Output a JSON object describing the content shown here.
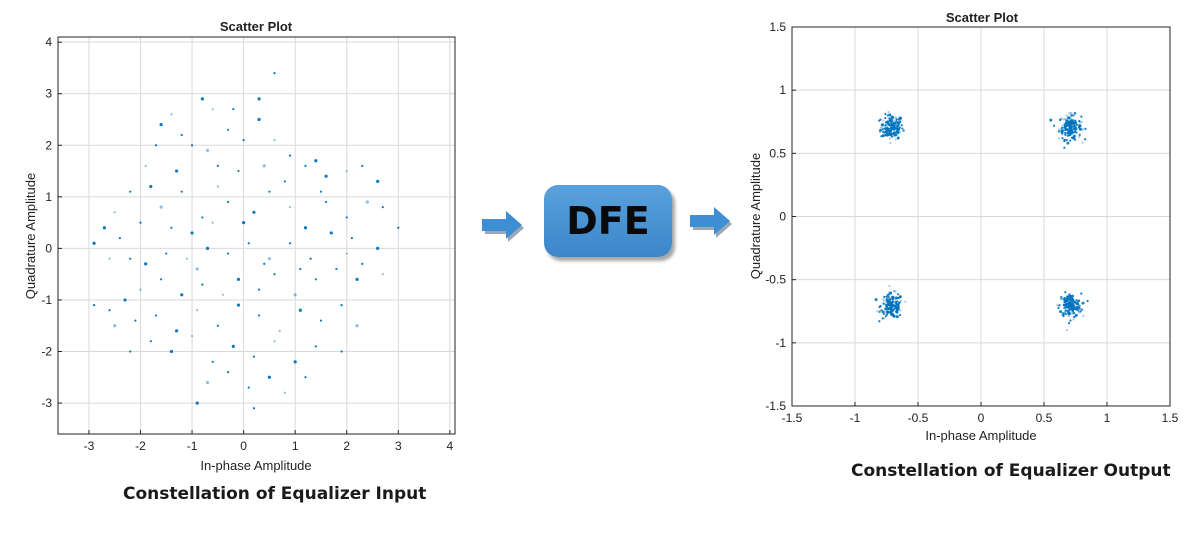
{
  "dfe_label": "DFE",
  "colors": {
    "point": "#0072bd",
    "arrow": "#3e8ed6",
    "box": "#4a95d5",
    "grid": "#d9d9d9"
  },
  "chart_data": [
    {
      "type": "scatter",
      "title": "Scatter Plot",
      "xlabel": "In-phase Amplitude",
      "ylabel": "Quadrature Amplitude",
      "caption": "Constellation of Equalizer Input",
      "xlim": [
        -3.6,
        4.1
      ],
      "ylim": [
        -3.6,
        4.1
      ],
      "xticks": [
        -3,
        -2,
        -1,
        0,
        1,
        2,
        3,
        4
      ],
      "yticks": [
        -3,
        -2,
        -1,
        0,
        1,
        2,
        3,
        4
      ],
      "xticklabels": [
        "-3",
        "-2",
        "-1",
        "0",
        "1",
        "2",
        "3",
        "4"
      ],
      "yticklabels": [
        "-3",
        "-2",
        "-1",
        "0",
        "1",
        "2",
        "3",
        "4"
      ],
      "grid": true,
      "series": [
        {
          "points": [
            [
              -0.8,
              2.9
            ],
            [
              -0.6,
              2.7
            ],
            [
              -0.2,
              2.7
            ],
            [
              0.3,
              2.9
            ],
            [
              0.6,
              3.4
            ],
            [
              -1.4,
              2.6
            ],
            [
              -1.6,
              2.4
            ],
            [
              -1.2,
              2.2
            ],
            [
              -1.0,
              2.0
            ],
            [
              -0.7,
              1.9
            ],
            [
              -0.3,
              2.3
            ],
            [
              0.0,
              2.1
            ],
            [
              0.3,
              2.5
            ],
            [
              0.6,
              2.1
            ],
            [
              0.9,
              1.8
            ],
            [
              1.4,
              1.7
            ],
            [
              -1.7,
              2.0
            ],
            [
              -1.9,
              1.6
            ],
            [
              -1.3,
              1.5
            ],
            [
              -0.5,
              1.6
            ],
            [
              -0.1,
              1.5
            ],
            [
              0.4,
              1.6
            ],
            [
              0.8,
              1.3
            ],
            [
              1.2,
              1.6
            ],
            [
              1.6,
              1.4
            ],
            [
              2.0,
              1.5
            ],
            [
              2.3,
              1.6
            ],
            [
              2.6,
              1.3
            ],
            [
              -2.2,
              1.1
            ],
            [
              -2.5,
              0.7
            ],
            [
              -2.7,
              0.4
            ],
            [
              -2.4,
              0.2
            ],
            [
              -2.0,
              0.5
            ],
            [
              -1.6,
              0.8
            ],
            [
              -1.2,
              1.1
            ],
            [
              -0.8,
              0.6
            ],
            [
              -1.0,
              0.3
            ],
            [
              -0.6,
              0.5
            ],
            [
              -0.3,
              0.9
            ],
            [
              0.2,
              0.7
            ],
            [
              0.5,
              1.1
            ],
            [
              0.9,
              0.8
            ],
            [
              1.2,
              0.4
            ],
            [
              1.6,
              0.9
            ],
            [
              2.0,
              0.6
            ],
            [
              2.4,
              0.9
            ],
            [
              2.7,
              0.8
            ],
            [
              2.1,
              0.2
            ],
            [
              -2.9,
              0.1
            ],
            [
              -2.6,
              -0.2
            ],
            [
              -2.2,
              -0.2
            ],
            [
              -1.9,
              -0.3
            ],
            [
              -1.5,
              -0.1
            ],
            [
              -1.1,
              -0.2
            ],
            [
              -0.7,
              0.0
            ],
            [
              -0.3,
              -0.1
            ],
            [
              0.1,
              0.1
            ],
            [
              0.5,
              -0.2
            ],
            [
              0.9,
              0.1
            ],
            [
              1.3,
              -0.2
            ],
            [
              1.7,
              0.3
            ],
            [
              2.0,
              -0.1
            ],
            [
              2.3,
              -0.3
            ],
            [
              2.6,
              0.0
            ],
            [
              3.0,
              0.4
            ],
            [
              2.7,
              -0.5
            ],
            [
              2.2,
              -0.6
            ],
            [
              1.8,
              -0.4
            ],
            [
              1.4,
              -0.6
            ],
            [
              1.0,
              -0.9
            ],
            [
              0.6,
              -0.5
            ],
            [
              0.3,
              -0.8
            ],
            [
              -0.1,
              -0.6
            ],
            [
              -0.4,
              -0.9
            ],
            [
              -0.8,
              -0.7
            ],
            [
              -1.2,
              -0.9
            ],
            [
              -1.6,
              -0.6
            ],
            [
              -2.0,
              -0.8
            ],
            [
              -2.3,
              -1.0
            ],
            [
              -2.6,
              -1.2
            ],
            [
              -2.9,
              -1.1
            ],
            [
              -2.5,
              -1.5
            ],
            [
              -2.1,
              -1.4
            ],
            [
              -1.7,
              -1.3
            ],
            [
              -1.3,
              -1.6
            ],
            [
              -0.9,
              -1.2
            ],
            [
              -0.5,
              -1.5
            ],
            [
              -0.1,
              -1.1
            ],
            [
              0.3,
              -1.3
            ],
            [
              0.7,
              -1.6
            ],
            [
              1.1,
              -1.2
            ],
            [
              1.5,
              -1.4
            ],
            [
              1.9,
              -1.1
            ],
            [
              2.2,
              -1.5
            ],
            [
              -2.2,
              -2.0
            ],
            [
              -1.8,
              -1.8
            ],
            [
              -1.4,
              -2.0
            ],
            [
              -1.0,
              -1.7
            ],
            [
              -0.6,
              -2.2
            ],
            [
              -0.2,
              -1.9
            ],
            [
              0.2,
              -2.1
            ],
            [
              0.6,
              -1.8
            ],
            [
              1.0,
              -2.2
            ],
            [
              1.4,
              -1.9
            ],
            [
              1.9,
              -2.0
            ],
            [
              -0.7,
              -2.6
            ],
            [
              -0.3,
              -2.4
            ],
            [
              0.1,
              -2.7
            ],
            [
              0.5,
              -2.5
            ],
            [
              0.8,
              -2.8
            ],
            [
              1.2,
              -2.5
            ],
            [
              -0.9,
              -3.0
            ],
            [
              0.2,
              -3.1
            ],
            [
              -0.5,
              1.2
            ],
            [
              0.0,
              0.5
            ],
            [
              1.5,
              1.1
            ],
            [
              -1.4,
              0.4
            ],
            [
              -0.9,
              -0.4
            ],
            [
              0.4,
              -0.3
            ],
            [
              1.1,
              -0.4
            ],
            [
              -1.8,
              1.2
            ]
          ]
        }
      ]
    },
    {
      "type": "scatter",
      "title": "Scatter Plot",
      "xlabel": "In-phase Amplitude",
      "ylabel": "Quadrature Amplitude",
      "caption": "Constellation of Equalizer Output",
      "xlim": [
        -1.5,
        1.5
      ],
      "ylim": [
        -1.5,
        1.5
      ],
      "xticks": [
        -1.5,
        -1,
        -0.5,
        0,
        0.5,
        1,
        1.5
      ],
      "yticks": [
        -1.5,
        -1,
        -0.5,
        0,
        0.5,
        1,
        1.5
      ],
      "xticklabels": [
        "-1.5",
        "-1",
        "-0.5",
        "0",
        "0.5",
        "1",
        "1.5"
      ],
      "yticklabels": [
        "-1.5",
        "-1",
        "-0.5",
        "0",
        "0.5",
        "1",
        "1.5"
      ],
      "grid": true,
      "series": [
        {
          "clusters": [
            {
              "center": [
                -0.707,
                0.707
              ],
              "spread": 0.08,
              "count": 170
            },
            {
              "center": [
                0.707,
                0.707
              ],
              "spread": 0.08,
              "count": 170
            },
            {
              "center": [
                -0.707,
                -0.707
              ],
              "spread": 0.08,
              "count": 170
            },
            {
              "center": [
                0.707,
                -0.707
              ],
              "spread": 0.08,
              "count": 170
            }
          ]
        }
      ]
    }
  ]
}
